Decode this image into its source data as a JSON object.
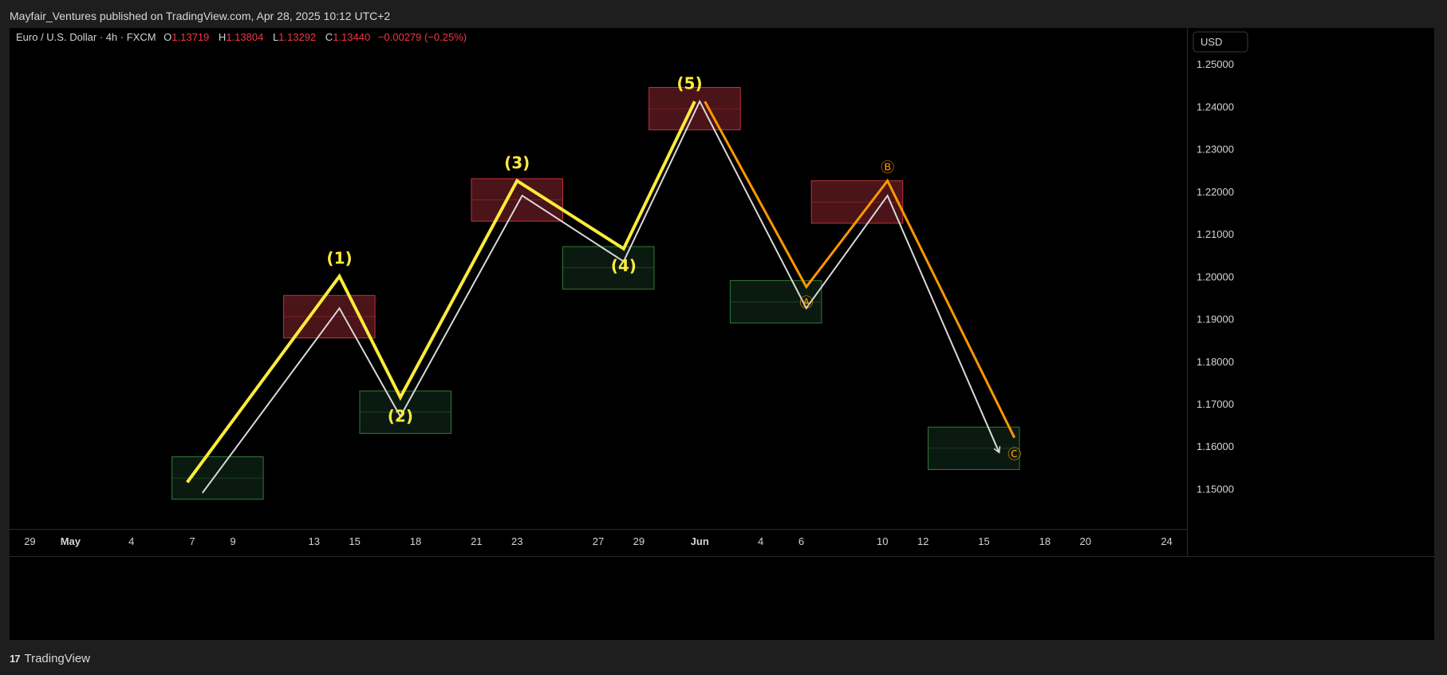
{
  "header": {
    "publisher_line": "Mayfair_Ventures published on TradingView.com, Apr 28, 2025 10:12 UTC+2"
  },
  "footer": {
    "brand_logo": "17",
    "brand_name": "TradingView"
  },
  "colors": {
    "impulse": "#ffeb3b",
    "projection": "#d9d9d9",
    "corrective": "#ff9800",
    "supply_fill": "#4a1418",
    "supply_border": "#c0323a",
    "demand_fill": "#0b1a10",
    "demand_border": "#2f7a3a",
    "ohlc_value": "#f23645",
    "text": "#d1d4dc"
  },
  "chart_data": {
    "type": "line",
    "title": "Euro / U.S. Dollar · 4h · FXCM",
    "ohlc": {
      "O": "1.13719",
      "H": "1.13804",
      "L": "1.13292",
      "C": "1.13440",
      "change": "−0.00279 (−0.25%)"
    },
    "currency": "USD",
    "ylim": [
      1.1405,
      1.2585
    ],
    "xlim": [
      "2025-04-28",
      "2025-06-25"
    ],
    "y_ticks": [
      "1.25000",
      "1.24000",
      "1.23000",
      "1.22000",
      "1.21000",
      "1.20000",
      "1.19000",
      "1.18000",
      "1.17000",
      "1.16000",
      "1.15000"
    ],
    "x_ticks": [
      {
        "date": "2025-04-29",
        "label": "29"
      },
      {
        "date": "2025-05-01",
        "label": "May"
      },
      {
        "date": "2025-05-04",
        "label": "4"
      },
      {
        "date": "2025-05-07",
        "label": "7"
      },
      {
        "date": "2025-05-09",
        "label": "9"
      },
      {
        "date": "2025-05-13",
        "label": "13"
      },
      {
        "date": "2025-05-15",
        "label": "15"
      },
      {
        "date": "2025-05-18",
        "label": "18"
      },
      {
        "date": "2025-05-21",
        "label": "21"
      },
      {
        "date": "2025-05-23",
        "label": "23"
      },
      {
        "date": "2025-05-27",
        "label": "27"
      },
      {
        "date": "2025-05-29",
        "label": "29"
      },
      {
        "date": "2025-06-01",
        "label": "Jun"
      },
      {
        "date": "2025-06-04",
        "label": "4"
      },
      {
        "date": "2025-06-06",
        "label": "6"
      },
      {
        "date": "2025-06-10",
        "label": "10"
      },
      {
        "date": "2025-06-12",
        "label": "12"
      },
      {
        "date": "2025-06-15",
        "label": "15"
      },
      {
        "date": "2025-06-18",
        "label": "18"
      },
      {
        "date": "2025-06-20",
        "label": "20"
      },
      {
        "date": "2025-06-24",
        "label": "24"
      }
    ],
    "bold_x_labels": [
      "May",
      "Jun"
    ],
    "series": [
      {
        "style": "impulse",
        "points": [
          {
            "x": "2025-05-06 18:00",
            "y": 1.1515
          },
          {
            "x": "2025-05-14 06:00",
            "y": 1.2
          },
          {
            "x": "2025-05-17 06:00",
            "y": 1.1715
          },
          {
            "x": "2025-05-23 00:00",
            "y": 1.2225
          },
          {
            "x": "2025-05-28 06:00",
            "y": 1.2065
          },
          {
            "x": "2025-05-31 18:00",
            "y": 1.2412
          }
        ]
      },
      {
        "style": "projection",
        "arrow": true,
        "points": [
          {
            "x": "2025-05-07 12:00",
            "y": 1.149
          },
          {
            "x": "2025-05-14 06:00",
            "y": 1.1925
          },
          {
            "x": "2025-05-17 06:00",
            "y": 1.167
          },
          {
            "x": "2025-05-23 06:00",
            "y": 1.219
          },
          {
            "x": "2025-05-28 06:00",
            "y": 1.2035
          },
          {
            "x": "2025-06-01 00:00",
            "y": 1.2412
          },
          {
            "x": "2025-06-06 06:00",
            "y": 1.1925
          },
          {
            "x": "2025-06-10 06:00",
            "y": 1.219
          },
          {
            "x": "2025-06-15 18:00",
            "y": 1.1585
          }
        ]
      },
      {
        "style": "corrective",
        "points": [
          {
            "x": "2025-06-01 06:00",
            "y": 1.2412
          },
          {
            "x": "2025-06-06 06:00",
            "y": 1.1975
          },
          {
            "x": "2025-06-10 06:00",
            "y": 1.2225
          },
          {
            "x": "2025-06-16 12:00",
            "y": 1.162
          }
        ]
      }
    ],
    "zones": [
      {
        "kind": "demand",
        "x1": "2025-05-06",
        "x2": "2025-05-10 12:00",
        "y1": 1.1475,
        "y2": 1.1575
      },
      {
        "kind": "supply",
        "x1": "2025-05-11 12:00",
        "x2": "2025-05-16",
        "y1": 1.1855,
        "y2": 1.1955
      },
      {
        "kind": "demand",
        "x1": "2025-05-15 06:00",
        "x2": "2025-05-19 18:00",
        "y1": 1.163,
        "y2": 1.173
      },
      {
        "kind": "supply",
        "x1": "2025-05-20 18:00",
        "x2": "2025-05-25 06:00",
        "y1": 1.213,
        "y2": 1.223
      },
      {
        "kind": "demand",
        "x1": "2025-05-25 06:00",
        "x2": "2025-05-29 18:00",
        "y1": 1.197,
        "y2": 1.207
      },
      {
        "kind": "supply",
        "x1": "2025-05-29 12:00",
        "x2": "2025-06-03",
        "y1": 1.2345,
        "y2": 1.2445
      },
      {
        "kind": "demand",
        "x1": "2025-06-02 12:00",
        "x2": "2025-06-07",
        "y1": 1.189,
        "y2": 1.199
      },
      {
        "kind": "supply",
        "x1": "2025-06-06 12:00",
        "x2": "2025-06-11",
        "y1": 1.2125,
        "y2": 1.2225
      },
      {
        "kind": "demand",
        "x1": "2025-06-12 06:00",
        "x2": "2025-06-16 18:00",
        "y1": 1.1545,
        "y2": 1.1645
      }
    ],
    "wave_labels": [
      {
        "text": "(1)",
        "x": "2025-05-14 06:00",
        "y": 1.204,
        "color": "impulse"
      },
      {
        "text": "(2)",
        "x": "2025-05-17 06:00",
        "y": 1.1668,
        "color": "impulse"
      },
      {
        "text": "(3)",
        "x": "2025-05-23 00:00",
        "y": 1.2265,
        "color": "impulse"
      },
      {
        "text": "(4)",
        "x": "2025-05-28 06:00",
        "y": 1.2022,
        "color": "impulse"
      },
      {
        "text": "(5)",
        "x": "2025-05-31 12:00",
        "y": 1.2452,
        "color": "impulse"
      },
      {
        "text": "Ⓐ",
        "x": "2025-06-06 06:00",
        "y": 1.1937,
        "color": "corrective"
      },
      {
        "text": "Ⓑ",
        "x": "2025-06-10 06:00",
        "y": 1.2255,
        "color": "corrective"
      },
      {
        "text": "Ⓒ",
        "x": "2025-06-16 12:00",
        "y": 1.158,
        "color": "corrective"
      }
    ]
  }
}
